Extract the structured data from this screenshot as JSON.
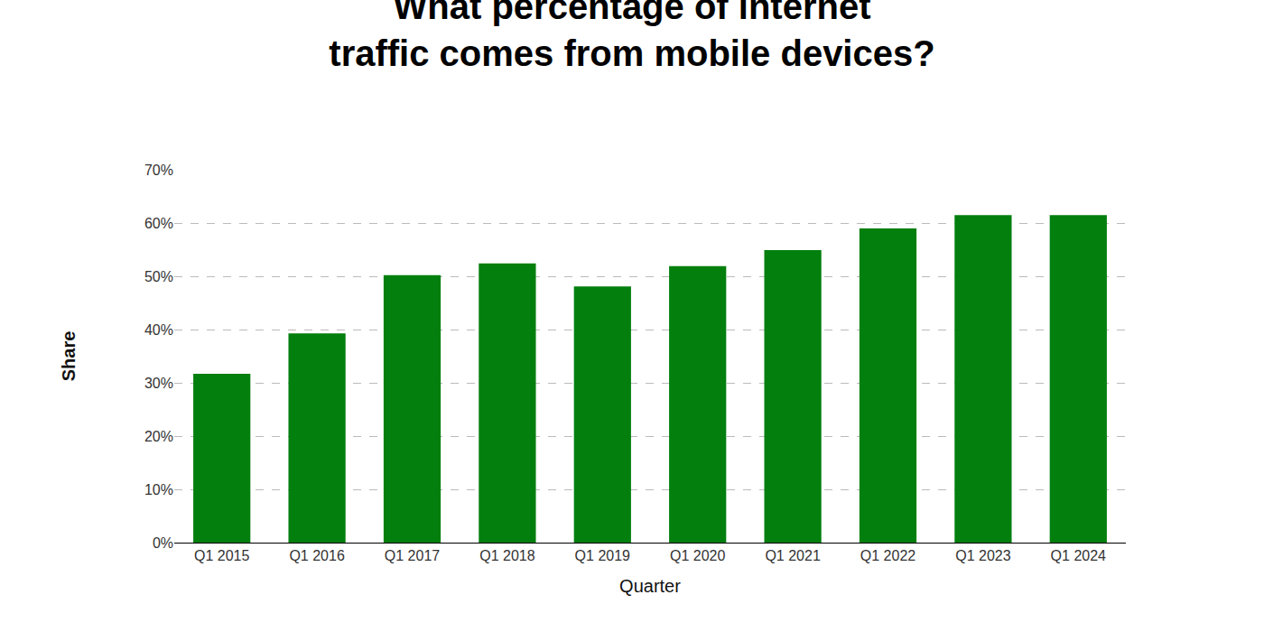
{
  "chart_data": {
    "type": "bar",
    "title": "What percentage of internet traffic comes from mobile devices?",
    "x_label": "Quarter",
    "y_label": "Share",
    "categories": [
      "Q1 2015",
      "Q1 2016",
      "Q1 2017",
      "Q1 2018",
      "Q1 2019",
      "Q1 2020",
      "Q1 2021",
      "Q1 2022",
      "Q1 2023",
      "Q1 2024"
    ],
    "values": [
      31.7,
      39.3,
      50.2,
      52.4,
      48.1,
      51.9,
      54.9,
      59.0,
      61.5,
      61.5
    ],
    "color": "#037f0e",
    "ylim": [
      0,
      70
    ],
    "yticks": [
      {
        "value": 0,
        "label": "0%"
      },
      {
        "value": 10,
        "label": "10%"
      },
      {
        "value": 20,
        "label": "20%"
      },
      {
        "value": 30,
        "label": "30%"
      },
      {
        "value": 40,
        "label": "40%"
      },
      {
        "value": 50,
        "label": "50%"
      },
      {
        "value": 60,
        "label": "60%"
      },
      {
        "value": 70,
        "label": "70%"
      }
    ],
    "grid": true
  }
}
